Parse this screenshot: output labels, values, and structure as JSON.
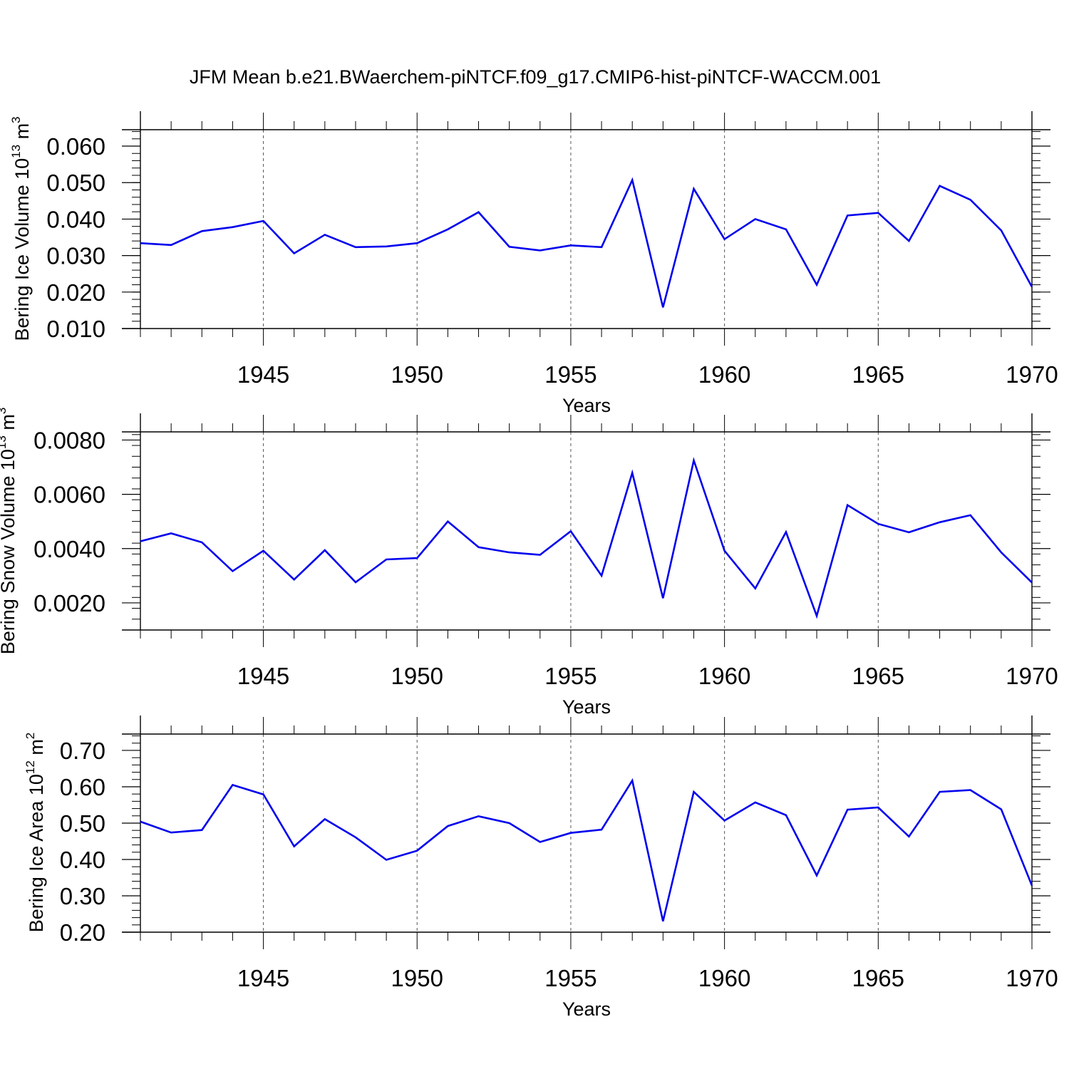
{
  "figure": {
    "title": "JFM Mean b.e21.BWaerchem-piNTCF.f09_g17.CMIP6-hist-piNTCF-WACCM.001"
  },
  "chart_data": [
    {
      "type": "line",
      "title": "JFM Mean b.e21.BWaerchem-piNTCF.f09_g17.CMIP6-hist-piNTCF-WACCM.001",
      "ylabel": "Bering Ice Volume",
      "ylabel_base": "10",
      "ylabel_exp": "13",
      "ylabel_unit": "m",
      "ylabel_unit_exp": "3",
      "xlabel": "Years",
      "xlim": [
        1941,
        1970
      ],
      "ylim": [
        0.01,
        0.0645
      ],
      "yticks": [
        0.01,
        0.02,
        0.03,
        0.04,
        0.05,
        0.06
      ],
      "yticklabels": [
        "0.010",
        "0.020",
        "0.030",
        "0.040",
        "0.050",
        "0.060"
      ],
      "yminor_step": 0.002,
      "xticks": [
        1945,
        1950,
        1955,
        1960,
        1965,
        1970
      ],
      "xticklabels": [
        "1945",
        "1950",
        "1955",
        "1960",
        "1965",
        "1970"
      ],
      "grid": "dashed vertical at major x ticks",
      "line_color": "#0000ee",
      "x": [
        1941,
        1942,
        1943,
        1944,
        1945,
        1946,
        1947,
        1948,
        1949,
        1950,
        1951,
        1952,
        1953,
        1954,
        1955,
        1956,
        1957,
        1958,
        1959,
        1960,
        1961,
        1962,
        1963,
        1964,
        1965,
        1966,
        1967,
        1968,
        1969,
        1970
      ],
      "values": [
        0.0334,
        0.0329,
        0.0367,
        0.0378,
        0.0395,
        0.0306,
        0.0357,
        0.0323,
        0.0325,
        0.0334,
        0.0372,
        0.0419,
        0.0324,
        0.0314,
        0.0328,
        0.0323,
        0.0507,
        0.0158,
        0.0483,
        0.0345,
        0.04,
        0.0372,
        0.022,
        0.041,
        0.0417,
        0.034,
        0.0491,
        0.0453,
        0.0369,
        0.0214
      ]
    },
    {
      "type": "line",
      "ylabel": "Bering Snow Volume",
      "ylabel_base": "10",
      "ylabel_exp": "13",
      "ylabel_unit": "m",
      "ylabel_unit_exp": "3",
      "xlabel": "Years",
      "xlim": [
        1941,
        1970
      ],
      "ylim": [
        0.001,
        0.0083
      ],
      "yticks": [
        0.002,
        0.004,
        0.006,
        0.008
      ],
      "yticklabels": [
        "0.0020",
        "0.0040",
        "0.0060",
        "0.0080"
      ],
      "yminor_step": 0.0004,
      "xticks": [
        1945,
        1950,
        1955,
        1960,
        1965,
        1970
      ],
      "xticklabels": [
        "1945",
        "1950",
        "1955",
        "1960",
        "1965",
        "1970"
      ],
      "grid": "dashed vertical at major x ticks",
      "line_color": "#0000ee",
      "x": [
        1941,
        1942,
        1943,
        1944,
        1945,
        1946,
        1947,
        1948,
        1949,
        1950,
        1951,
        1952,
        1953,
        1954,
        1955,
        1956,
        1957,
        1958,
        1959,
        1960,
        1961,
        1962,
        1963,
        1964,
        1965,
        1966,
        1967,
        1968,
        1969,
        1970
      ],
      "values": [
        0.00427,
        0.00456,
        0.00423,
        0.00317,
        0.00392,
        0.00286,
        0.00394,
        0.00276,
        0.0036,
        0.00365,
        0.005,
        0.00405,
        0.00386,
        0.00377,
        0.00464,
        0.003,
        0.00679,
        0.00217,
        0.00725,
        0.00392,
        0.00253,
        0.00461,
        0.00152,
        0.0056,
        0.00491,
        0.0046,
        0.00497,
        0.00523,
        0.00386,
        0.00275
      ]
    },
    {
      "type": "line",
      "ylabel": "Bering Ice Area",
      "ylabel_base": "10",
      "ylabel_exp": "12",
      "ylabel_unit": "m",
      "ylabel_unit_exp": "2",
      "xlabel": "Years",
      "xlim": [
        1941,
        1970
      ],
      "ylim": [
        0.2,
        0.745
      ],
      "yticks": [
        0.2,
        0.3,
        0.4,
        0.5,
        0.6,
        0.7
      ],
      "yticklabels": [
        "0.20",
        "0.30",
        "0.40",
        "0.50",
        "0.60",
        "0.70"
      ],
      "yminor_step": 0.02,
      "xticks": [
        1945,
        1950,
        1955,
        1960,
        1965,
        1970
      ],
      "xticklabels": [
        "1945",
        "1950",
        "1955",
        "1960",
        "1965",
        "1970"
      ],
      "grid": "dashed vertical at major x ticks",
      "line_color": "#0000ee",
      "x": [
        1941,
        1942,
        1943,
        1944,
        1945,
        1946,
        1947,
        1948,
        1949,
        1950,
        1951,
        1952,
        1953,
        1954,
        1955,
        1956,
        1957,
        1958,
        1959,
        1960,
        1961,
        1962,
        1963,
        1964,
        1965,
        1966,
        1967,
        1968,
        1969,
        1970
      ],
      "values": [
        0.504,
        0.474,
        0.481,
        0.605,
        0.579,
        0.436,
        0.511,
        0.461,
        0.399,
        0.424,
        0.492,
        0.519,
        0.5,
        0.448,
        0.473,
        0.482,
        0.617,
        0.23,
        0.586,
        0.507,
        0.557,
        0.522,
        0.356,
        0.537,
        0.543,
        0.463,
        0.586,
        0.591,
        0.538,
        0.328
      ]
    }
  ]
}
